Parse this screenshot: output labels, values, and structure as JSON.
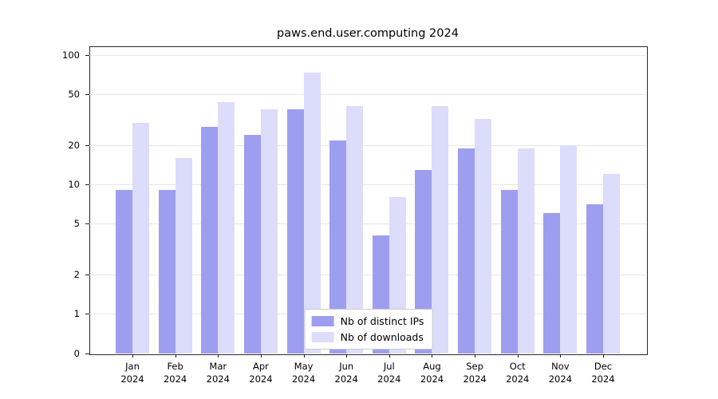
{
  "chart_data": {
    "type": "bar",
    "title": "paws.end.user.computing 2024",
    "categories": [
      "Jan",
      "Feb",
      "Mar",
      "Apr",
      "May",
      "Jun",
      "Jul",
      "Aug",
      "Sep",
      "Oct",
      "Nov",
      "Dec"
    ],
    "year": "2024",
    "series": [
      {
        "name": "Nb of distinct IPs",
        "color": "#9e9ef0",
        "values": [
          9,
          9,
          28,
          24,
          38,
          22,
          4,
          13,
          19,
          9,
          6,
          7
        ]
      },
      {
        "name": "Nb of downloads",
        "color": "#dcdcfb",
        "values": [
          30,
          16,
          43,
          38,
          73,
          40,
          8,
          40,
          32,
          19,
          20,
          12
        ]
      }
    ],
    "yticks": [
      0,
      1,
      2,
      5,
      10,
      20,
      50,
      100
    ],
    "ylim": [
      0,
      100
    ],
    "yscale": "symlog",
    "grid": true,
    "legend_position": "bottom-center"
  }
}
